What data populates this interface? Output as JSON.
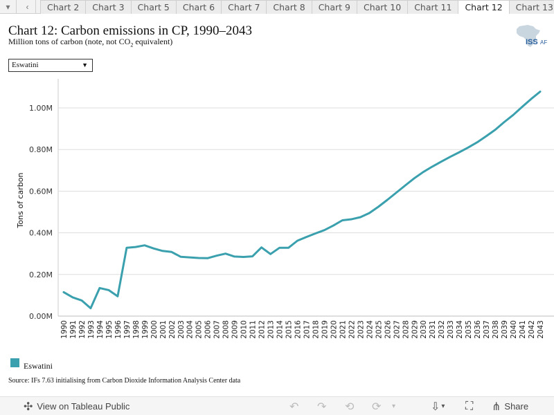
{
  "tabs": {
    "items": [
      "Chart 2",
      "Chart 3",
      "Chart 5",
      "Chart 6",
      "Chart 7",
      "Chart 8",
      "Chart 9",
      "Chart 10",
      "Chart 11",
      "Chart 12",
      "Chart 13"
    ],
    "active": "Chart 12",
    "prev_glyph": "▾",
    "next_glyph": "‹"
  },
  "header": {
    "title": "Chart 12: Carbon emissions in CP, 1990–2043",
    "subtitle_prefix": "Million tons of carbon (note, not CO",
    "subtitle_sub": "2",
    "subtitle_suffix": " equivalent)"
  },
  "logo": {
    "text": "ISS",
    "suffix": "AF",
    "icon": "africa-map-icon"
  },
  "filter": {
    "selected": "Eswatini",
    "caret": "▼"
  },
  "chart_data": {
    "type": "line",
    "title": "Chart 12: Carbon emissions in CP, 1990–2043",
    "ylabel": "Tons of carbon",
    "xlabel": "",
    "ylim": [
      0,
      1000000
    ],
    "yticks": [
      "0.00M",
      "0.20M",
      "0.40M",
      "0.60M",
      "0.80M",
      "1.00M"
    ],
    "yticks_values": [
      0,
      200000,
      400000,
      600000,
      800000,
      1000000
    ],
    "grid": "horizontal",
    "legend": "bottom-left",
    "x": [
      1990,
      1991,
      1992,
      1993,
      1994,
      1995,
      1996,
      1997,
      1998,
      1999,
      2000,
      2001,
      2002,
      2003,
      2004,
      2005,
      2006,
      2007,
      2008,
      2009,
      2010,
      2011,
      2012,
      2013,
      2014,
      2015,
      2016,
      2017,
      2018,
      2019,
      2020,
      2021,
      2022,
      2023,
      2024,
      2025,
      2026,
      2027,
      2028,
      2029,
      2030,
      2031,
      2032,
      2033,
      2034,
      2035,
      2036,
      2037,
      2038,
      2039,
      2040,
      2041,
      2042,
      2043
    ],
    "series": [
      {
        "name": "Eswatini",
        "color": "#3aa0ae",
        "values": [
          115000,
          90000,
          75000,
          38000,
          135000,
          125000,
          95000,
          328000,
          332000,
          340000,
          325000,
          313000,
          308000,
          285000,
          282000,
          279000,
          278000,
          290000,
          300000,
          286000,
          284000,
          287000,
          330000,
          298000,
          328000,
          328000,
          362000,
          380000,
          397000,
          413000,
          435000,
          460000,
          465000,
          475000,
          495000,
          525000,
          558000,
          593000,
          628000,
          662000,
          692000,
          718000,
          742000,
          765000,
          787000,
          810000,
          835000,
          864000,
          895000,
          932000,
          966000,
          1005000,
          1043000,
          1078000
        ]
      }
    ]
  },
  "legend": {
    "items": [
      {
        "label": "Eswatini",
        "color": "#3aa0ae"
      }
    ]
  },
  "source": "Source: IFs 7.63 initialising from Carbon Dioxide Information Analysis Center data",
  "footer": {
    "tableau_label": "View on Tableau Public",
    "share_label": "Share"
  }
}
